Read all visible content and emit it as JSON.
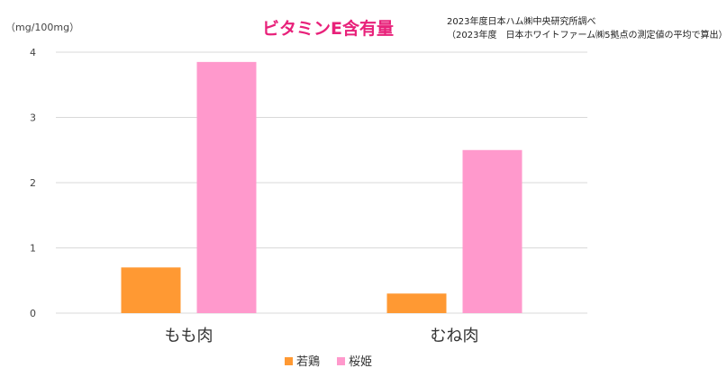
{
  "chart_data": {
    "type": "bar",
    "title": "ビタミンE含有量",
    "title_color": "#e8217a",
    "notes": [
      "2023年度日本ハム㈱中央研究所調べ",
      "（2023年度　日本ホワイトファーム㈱5拠点の測定値の平均で算出）"
    ],
    "ylabel": "（mg/100mg）",
    "ylim": [
      0,
      4
    ],
    "yticks": [
      0,
      1,
      2,
      3,
      4
    ],
    "grid": true,
    "categories": [
      "もも肉",
      "むね肉"
    ],
    "series": [
      {
        "name": "若鶏",
        "color": "#ff9933",
        "values": [
          0.7,
          0.3
        ]
      },
      {
        "name": "桜姫",
        "color": "#ff99cc",
        "values": [
          3.85,
          2.5
        ]
      }
    ],
    "legend_position": "bottom"
  }
}
